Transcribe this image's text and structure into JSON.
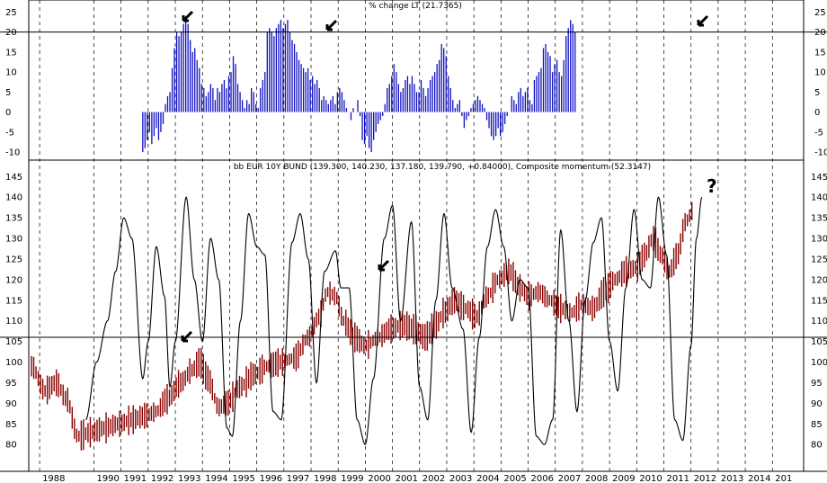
{
  "chart_data": [
    {
      "type": "bar",
      "title": "% change LT (21.7365)",
      "ylim": [
        -12,
        28
      ],
      "yticks": [
        25,
        20,
        15,
        10,
        5,
        0,
        -5,
        -10
      ],
      "hline": 20,
      "color": "#1010c0",
      "x_start": 1991.8,
      "step": 0.0834,
      "values": [
        -10,
        -9,
        -7,
        -5,
        -8,
        -6,
        -4,
        -7,
        -5,
        -3,
        2,
        4,
        5,
        11,
        16,
        20,
        19,
        20,
        22,
        24,
        22,
        18,
        15,
        16,
        13,
        11,
        7,
        6,
        4,
        5,
        7,
        6,
        3,
        6,
        5,
        7,
        8,
        6,
        9,
        10,
        14,
        12,
        7,
        5,
        3,
        1,
        3,
        2,
        6,
        5,
        2,
        1,
        6,
        8,
        10,
        20,
        21,
        20,
        19,
        21,
        22,
        23,
        21,
        22,
        23,
        20,
        18,
        17,
        15,
        13,
        12,
        11,
        10,
        11,
        8,
        9,
        7,
        8,
        6,
        3,
        4,
        3,
        2,
        3,
        4,
        2,
        5,
        6,
        5,
        3,
        1,
        0,
        -2,
        1,
        0,
        3,
        -1,
        -7,
        -8,
        -6,
        -9,
        -10,
        -7,
        -5,
        -3,
        -2,
        -1,
        2,
        6,
        7,
        9,
        12,
        10,
        7,
        5,
        6,
        8,
        9,
        7,
        9,
        7,
        5,
        5,
        8,
        6,
        4,
        6,
        8,
        9,
        10,
        12,
        13,
        17,
        16,
        14,
        9,
        6,
        3,
        1,
        2,
        3,
        -1,
        -4,
        -2,
        -1,
        1,
        2,
        3,
        4,
        3,
        2,
        1,
        -2,
        -4,
        -6,
        -7,
        -6,
        -4,
        -6,
        -5,
        -3,
        -1,
        0,
        4,
        3,
        2,
        5,
        6,
        4,
        5,
        6,
        3,
        2,
        8,
        9,
        10,
        11,
        16,
        17,
        15,
        14,
        10,
        12,
        13,
        10,
        9,
        13,
        19,
        21,
        23,
        22,
        20
      ]
    },
    {
      "type": "line",
      "title": "bb EUR 10Y BUND (139.300, 140.230, 137.180, 139.790, +0.84000), Composite momentum (52.3147)",
      "ylim": [
        73.5,
        149
      ],
      "yticks": [
        145,
        140,
        135,
        130,
        125,
        120,
        115,
        110,
        105,
        100,
        95,
        90,
        85,
        80
      ],
      "hline": 106,
      "price_color": "#8b0000",
      "momentum_color": "#000000",
      "price_knots": [
        [
          1987.7,
          99
        ],
        [
          1988.2,
          93
        ],
        [
          1988.6,
          95
        ],
        [
          1989.0,
          91
        ],
        [
          1989.4,
          82
        ],
        [
          1989.9,
          83
        ],
        [
          1990.4,
          84
        ],
        [
          1990.9,
          85
        ],
        [
          1991.4,
          86
        ],
        [
          1991.9,
          87
        ],
        [
          1992.3,
          88
        ],
        [
          1992.7,
          91
        ],
        [
          1993.2,
          95
        ],
        [
          1993.6,
          98
        ],
        [
          1993.9,
          100
        ],
        [
          1994.2,
          96
        ],
        [
          1994.6,
          89
        ],
        [
          1994.9,
          90
        ],
        [
          1995.4,
          94
        ],
        [
          1995.9,
          97
        ],
        [
          1996.4,
          99
        ],
        [
          1996.9,
          100
        ],
        [
          1997.4,
          101
        ],
        [
          1997.9,
          106
        ],
        [
          1998.3,
          111
        ],
        [
          1998.6,
          117
        ],
        [
          1998.9,
          116
        ],
        [
          1999.2,
          110
        ],
        [
          1999.6,
          106
        ],
        [
          2000.0,
          104
        ],
        [
          2000.5,
          106
        ],
        [
          2000.9,
          108
        ],
        [
          2001.4,
          109
        ],
        [
          2001.8,
          108
        ],
        [
          2002.2,
          106
        ],
        [
          2002.6,
          109
        ],
        [
          2002.9,
          112
        ],
        [
          2003.3,
          115
        ],
        [
          2003.7,
          113
        ],
        [
          2004.1,
          111
        ],
        [
          2004.5,
          116
        ],
        [
          2004.9,
          120
        ],
        [
          2005.3,
          122
        ],
        [
          2005.7,
          118
        ],
        [
          2006.0,
          116
        ],
        [
          2006.4,
          117
        ],
        [
          2006.8,
          115
        ],
        [
          2007.2,
          113
        ],
        [
          2007.6,
          112
        ],
        [
          2008.0,
          114
        ],
        [
          2008.4,
          113
        ],
        [
          2008.8,
          117
        ],
        [
          2009.2,
          120
        ],
        [
          2009.6,
          122
        ],
        [
          2010.0,
          123
        ],
        [
          2010.3,
          126
        ],
        [
          2010.6,
          130
        ],
        [
          2010.9,
          126
        ],
        [
          2011.2,
          122
        ],
        [
          2011.5,
          126
        ],
        [
          2011.8,
          134
        ],
        [
          2012.1,
          137
        ]
      ],
      "momentum_knots": [
        [
          1989.7,
          86
        ],
        [
          1990.1,
          100
        ],
        [
          1990.5,
          110
        ],
        [
          1990.8,
          122
        ],
        [
          1991.1,
          135
        ],
        [
          1991.4,
          130
        ],
        [
          1991.8,
          96
        ],
        [
          1992.0,
          105
        ],
        [
          1992.3,
          128
        ],
        [
          1992.6,
          116
        ],
        [
          1992.8,
          94
        ],
        [
          1993.0,
          105
        ],
        [
          1993.4,
          140
        ],
        [
          1993.7,
          120
        ],
        [
          1994.0,
          105
        ],
        [
          1994.3,
          130
        ],
        [
          1994.6,
          120
        ],
        [
          1994.9,
          84
        ],
        [
          1995.1,
          82
        ],
        [
          1995.4,
          110
        ],
        [
          1995.7,
          136
        ],
        [
          1996.0,
          128
        ],
        [
          1996.3,
          126
        ],
        [
          1996.6,
          88
        ],
        [
          1996.9,
          86
        ],
        [
          1997.3,
          129
        ],
        [
          1997.6,
          136
        ],
        [
          1997.9,
          125
        ],
        [
          1998.2,
          95
        ],
        [
          1998.5,
          122
        ],
        [
          1998.9,
          127
        ],
        [
          1999.1,
          118
        ],
        [
          1999.4,
          118
        ],
        [
          1999.7,
          86
        ],
        [
          2000.0,
          80
        ],
        [
          2000.3,
          96
        ],
        [
          2000.7,
          130
        ],
        [
          2001.0,
          138
        ],
        [
          2001.3,
          110
        ],
        [
          2001.7,
          134
        ],
        [
          2002.0,
          94
        ],
        [
          2002.3,
          86
        ],
        [
          2002.6,
          115
        ],
        [
          2002.9,
          136
        ],
        [
          2003.2,
          118
        ],
        [
          2003.6,
          108
        ],
        [
          2003.9,
          83
        ],
        [
          2004.2,
          106
        ],
        [
          2004.5,
          128
        ],
        [
          2004.8,
          137
        ],
        [
          2005.1,
          128
        ],
        [
          2005.4,
          110
        ],
        [
          2005.7,
          120
        ],
        [
          2006.0,
          118
        ],
        [
          2006.3,
          82
        ],
        [
          2006.6,
          80
        ],
        [
          2006.9,
          86
        ],
        [
          2007.2,
          132
        ],
        [
          2007.5,
          110
        ],
        [
          2007.8,
          88
        ],
        [
          2008.1,
          115
        ],
        [
          2008.4,
          129
        ],
        [
          2008.7,
          135
        ],
        [
          2009.0,
          105
        ],
        [
          2009.3,
          93
        ],
        [
          2009.6,
          118
        ],
        [
          2009.9,
          137
        ],
        [
          2010.2,
          120
        ],
        [
          2010.5,
          118
        ],
        [
          2010.8,
          140
        ],
        [
          2011.1,
          126
        ],
        [
          2011.4,
          86
        ],
        [
          2011.7,
          81
        ],
        [
          2012.0,
          104
        ],
        [
          2012.2,
          130
        ],
        [
          2012.4,
          140
        ]
      ]
    }
  ],
  "x_axis": {
    "start": 1987.6,
    "end": 2016.15,
    "labels": [
      "1988",
      "1990",
      "1991",
      "1992",
      "1993",
      "1994",
      "1995",
      "1996",
      "1997",
      "1998",
      "1999",
      "2000",
      "2001",
      "2002",
      "2003",
      "2004",
      "2005",
      "2006",
      "2007",
      "2008",
      "2009",
      "2010",
      "2011",
      "2012",
      "2013",
      "2014",
      "201"
    ]
  },
  "annotations": {
    "question_mark": "?"
  }
}
